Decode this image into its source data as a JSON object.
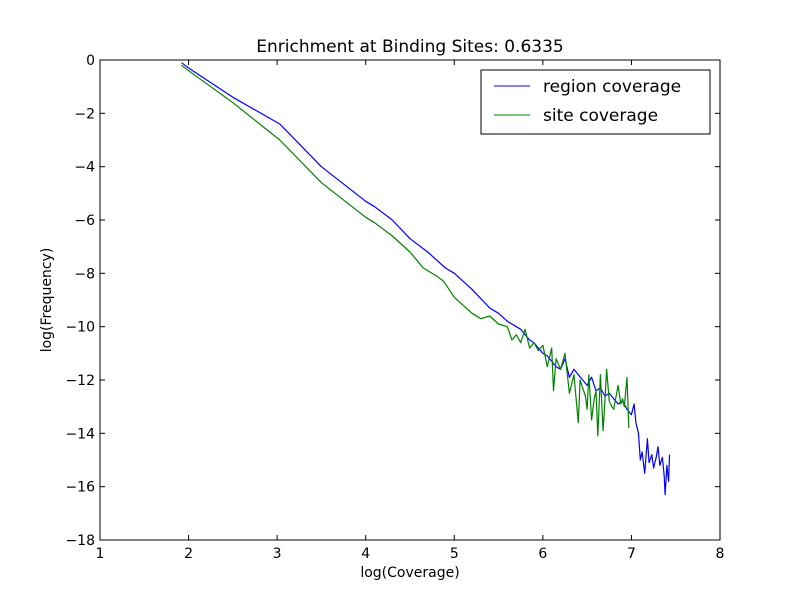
{
  "chart_data": {
    "type": "line",
    "title": "Enrichment at Binding Sites: 0.6335",
    "xlabel": "log(Coverage)",
    "ylabel": "log(Frequency)",
    "xlim": [
      1,
      8
    ],
    "ylim": [
      -18,
      0
    ],
    "xticks": [
      "1",
      "2",
      "3",
      "4",
      "5",
      "6",
      "7",
      "8"
    ],
    "yticks": [
      "0",
      "−2",
      "−4",
      "−6",
      "−8",
      "−10",
      "−12",
      "−14",
      "−16",
      "−18"
    ],
    "grid": false,
    "legend_position": "top-right",
    "series": [
      {
        "name": "region coverage",
        "color": "#0000ff",
        "x": [
          1.92,
          2.0,
          2.5,
          3.03,
          3.5,
          4.0,
          4.1,
          4.3,
          4.5,
          4.7,
          4.9,
          5.0,
          5.2,
          5.4,
          5.5,
          5.6,
          5.7,
          5.75,
          5.8,
          5.85,
          5.9,
          5.95,
          6.0,
          6.05,
          6.1,
          6.15,
          6.2,
          6.25,
          6.3,
          6.35,
          6.4,
          6.45,
          6.5,
          6.55,
          6.6,
          6.65,
          6.7,
          6.75,
          6.8,
          6.85,
          6.9,
          6.95,
          7.0,
          7.03,
          7.05,
          7.08,
          7.1,
          7.12,
          7.15,
          7.18,
          7.2,
          7.23,
          7.25,
          7.28,
          7.3,
          7.32,
          7.35,
          7.37,
          7.38,
          7.4,
          7.42,
          7.43
        ],
        "y": [
          -0.1,
          -0.3,
          -1.4,
          -2.4,
          -4.0,
          -5.3,
          -5.5,
          -6.0,
          -6.7,
          -7.2,
          -7.8,
          -8.0,
          -8.6,
          -9.3,
          -9.5,
          -9.8,
          -10.0,
          -10.1,
          -10.3,
          -10.5,
          -10.6,
          -10.8,
          -11.0,
          -11.1,
          -11.3,
          -11.5,
          -11.6,
          -11.2,
          -11.9,
          -11.6,
          -11.8,
          -12.0,
          -12.2,
          -11.9,
          -12.4,
          -12.3,
          -12.6,
          -12.5,
          -12.7,
          -12.9,
          -12.8,
          -13.1,
          -13.3,
          -12.9,
          -13.6,
          -14.0,
          -15.0,
          -14.7,
          -15.5,
          -14.2,
          -15.1,
          -14.8,
          -15.3,
          -14.9,
          -14.5,
          -15.2,
          -14.9,
          -15.6,
          -16.3,
          -15.2,
          -15.8,
          -14.8
        ]
      },
      {
        "name": "site coverage",
        "color": "#008000",
        "x": [
          1.92,
          2.0,
          2.5,
          3.03,
          3.5,
          4.0,
          4.1,
          4.3,
          4.5,
          4.65,
          4.8,
          4.88,
          5.0,
          5.2,
          5.3,
          5.4,
          5.5,
          5.6,
          5.65,
          5.7,
          5.75,
          5.8,
          5.85,
          5.9,
          5.95,
          6.0,
          6.05,
          6.1,
          6.12,
          6.15,
          6.2,
          6.25,
          6.3,
          6.35,
          6.4,
          6.42,
          6.45,
          6.48,
          6.5,
          6.52,
          6.55,
          6.58,
          6.6,
          6.62,
          6.65,
          6.68,
          6.7,
          6.72,
          6.75,
          6.78,
          6.8,
          6.85,
          6.88,
          6.9,
          6.92,
          6.95,
          6.97
        ],
        "y": [
          -0.2,
          -0.4,
          -1.6,
          -3.0,
          -4.6,
          -5.9,
          -6.1,
          -6.6,
          -7.2,
          -7.8,
          -8.1,
          -8.3,
          -8.9,
          -9.5,
          -9.7,
          -9.6,
          -9.9,
          -10.0,
          -10.5,
          -10.3,
          -10.6,
          -10.1,
          -10.8,
          -10.6,
          -10.9,
          -10.7,
          -11.5,
          -10.8,
          -12.4,
          -11.2,
          -11.6,
          -11.0,
          -12.5,
          -11.8,
          -13.6,
          -12.0,
          -12.3,
          -12.6,
          -13.1,
          -11.8,
          -13.5,
          -12.7,
          -12.4,
          -14.1,
          -11.8,
          -13.9,
          -12.8,
          -11.6,
          -12.8,
          -13.0,
          -13.1,
          -12.2,
          -12.9,
          -12.7,
          -13.0,
          -11.9,
          -13.8
        ]
      }
    ]
  }
}
